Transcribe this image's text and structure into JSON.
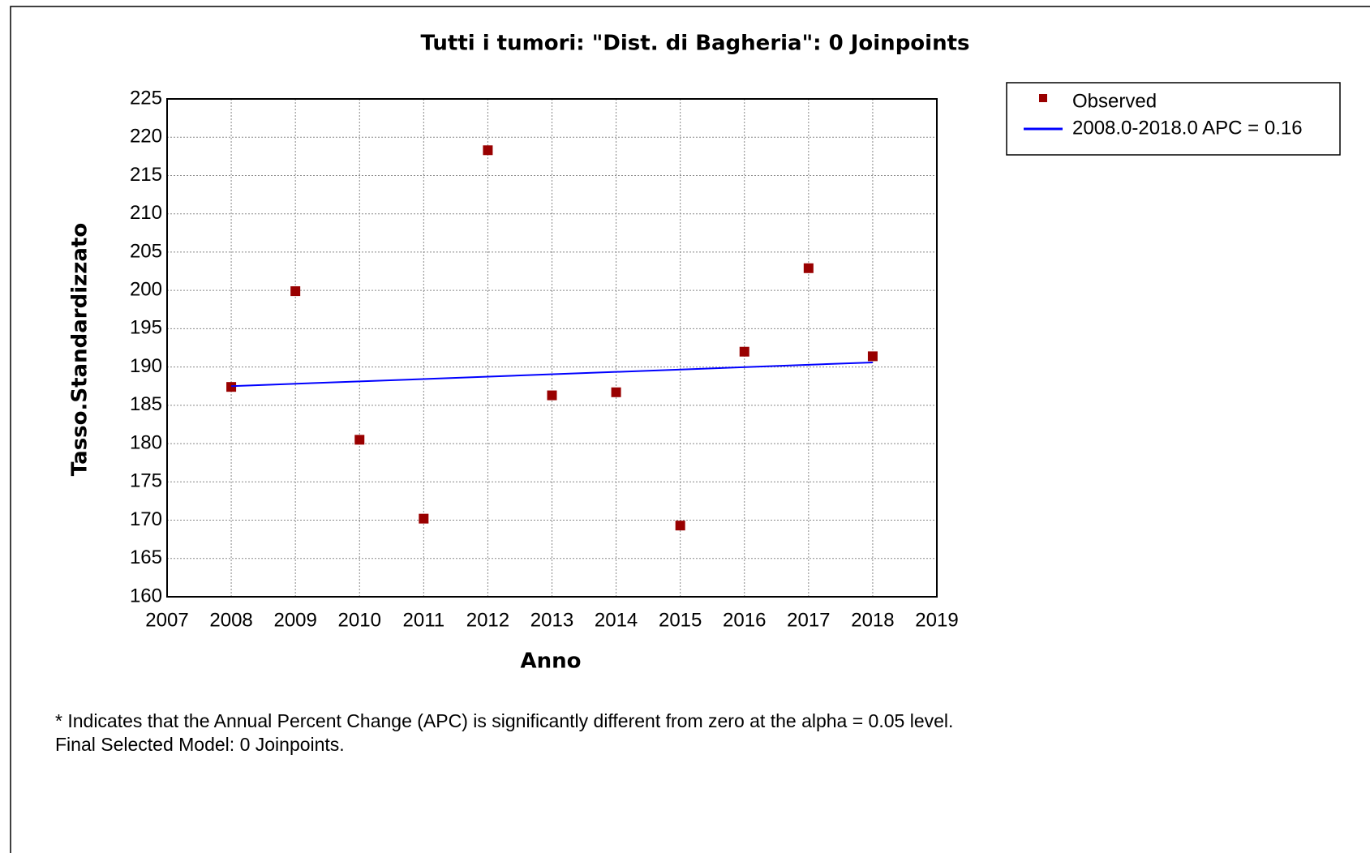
{
  "chart_data": {
    "type": "scatter",
    "title": "Tutti i tumori: \"Dist. di Bagheria\": 0 Joinpoints",
    "x_label": "Anno",
    "y_label": "Tasso.Standardizzato",
    "series": [
      {
        "name": "Observed",
        "color": "#990000",
        "marker": "square",
        "x": [
          2008,
          2009,
          2010,
          2011,
          2012,
          2013,
          2014,
          2015,
          2016,
          2017,
          2018
        ],
        "values": [
          187.4,
          199.9,
          180.5,
          170.2,
          218.3,
          186.3,
          186.7,
          169.3,
          192.0,
          202.9,
          191.4
        ]
      },
      {
        "name": "2008.0-2018.0 APC  = 0.16",
        "color": "#0000ff",
        "marker": "line",
        "x": [
          2008,
          2018
        ],
        "values": [
          187.5,
          190.6
        ]
      }
    ],
    "xlim": [
      2007,
      2019
    ],
    "xticks": [
      2007,
      2008,
      2009,
      2010,
      2011,
      2012,
      2013,
      2014,
      2015,
      2016,
      2017,
      2018,
      2019
    ],
    "ylim": [
      160,
      225
    ],
    "yticks": [
      160,
      165,
      170,
      175,
      180,
      185,
      190,
      195,
      200,
      205,
      210,
      215,
      220,
      225
    ],
    "grid": true,
    "legend": "outside-right",
    "notes": [
      "* Indicates that the Annual Percent Change (APC) is significantly different from zero at the alpha = 0.05 level.",
      "Final Selected Model: 0 Joinpoints."
    ]
  }
}
